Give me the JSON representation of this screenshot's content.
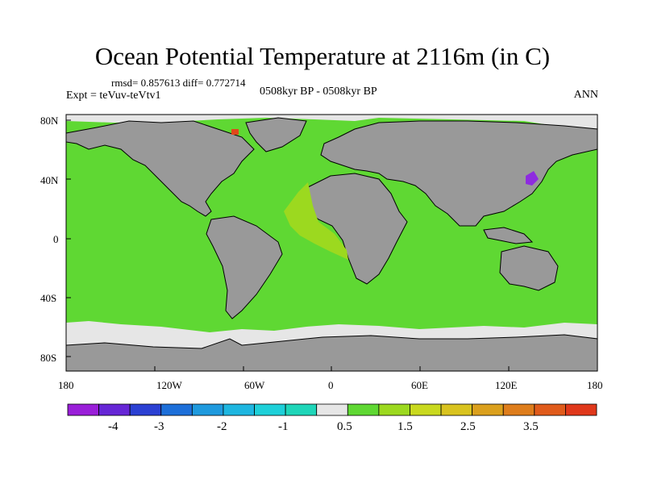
{
  "header": {
    "title": "Ocean Potential Temperature at 2116m (in C)",
    "stats": "rmsd= 0.857613 diff= 0.772714",
    "experiment": "Expt = teVuv-teVtv1",
    "period": "0508kyr BP - 0508kyr BP",
    "season": "ANN"
  },
  "map": {
    "lat_labels": [
      "80N",
      "40N",
      "0",
      "40S",
      "80S"
    ],
    "lon_labels": [
      "180",
      "120W",
      "60W",
      "0",
      "60E",
      "120E",
      "180"
    ],
    "colors": {
      "ocean_main": "#5fd833",
      "land": "#999999",
      "ice": "#e6e6e6",
      "atlantic_warm": "#9cd91f",
      "hotspot": "#e0481b",
      "coldspot": "#8e2be0"
    }
  },
  "colorbar": {
    "colors": [
      "#9a1fd9",
      "#6626d6",
      "#2b40d3",
      "#1d6fd9",
      "#1f9ade",
      "#1eb6e0",
      "#1ed0d9",
      "#1fd6b9",
      "#e6e6e6",
      "#5fd833",
      "#9cd91f",
      "#c9d91f",
      "#d9c31f",
      "#dba01d",
      "#de7d1c",
      "#e05b1b",
      "#e0381b"
    ],
    "labels": [
      "-4",
      "-3",
      "-2",
      "-1",
      "0.5",
      "1.5",
      "2.5",
      "3.5"
    ]
  }
}
